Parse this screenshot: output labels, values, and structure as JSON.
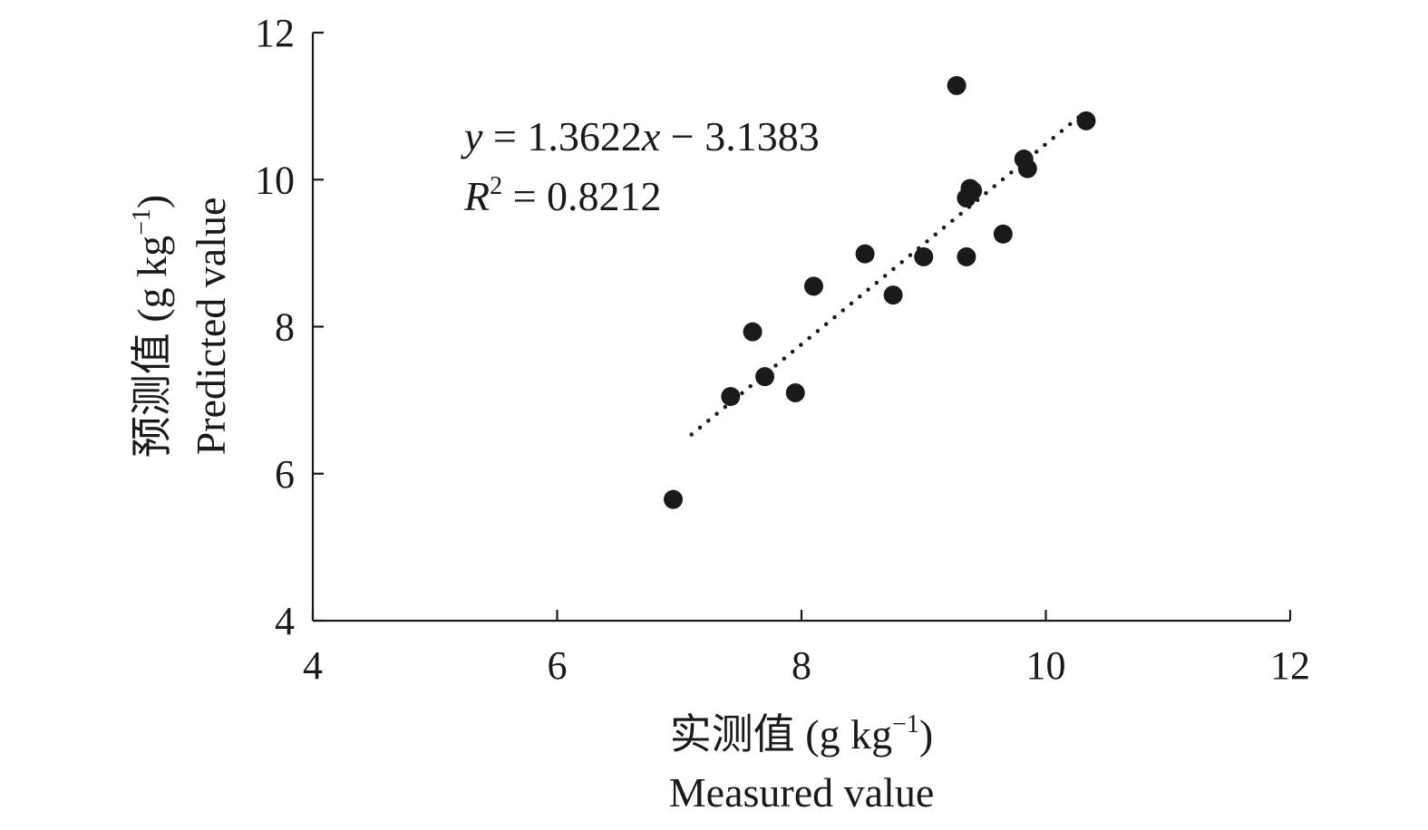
{
  "chart_data": {
    "type": "scatter",
    "title": "",
    "xlabel": {
      "cn": "实测值",
      "unit_base": " (g kg",
      "unit_sup": "−1",
      "unit_close": ")",
      "en": "Measured value"
    },
    "ylabel": {
      "cn": "预测值",
      "unit_base": " (g kg",
      "unit_sup": "−1",
      "unit_close": ")",
      "en": "Predicted value"
    },
    "xlim": [
      4,
      12
    ],
    "ylim": [
      4,
      12
    ],
    "xticks": [
      "4",
      "6",
      "8",
      "10",
      "12"
    ],
    "yticks": [
      "4",
      "6",
      "8",
      "10",
      "12"
    ],
    "grid": false,
    "legend": "none",
    "series": [
      {
        "points": [
          [
            6.95,
            5.65
          ],
          [
            7.42,
            7.05
          ],
          [
            7.6,
            7.93
          ],
          [
            7.7,
            7.32
          ],
          [
            7.95,
            7.1
          ],
          [
            8.1,
            8.55
          ],
          [
            8.52,
            8.99
          ],
          [
            8.75,
            8.43
          ],
          [
            9.0,
            8.95
          ],
          [
            9.27,
            11.28
          ],
          [
            9.35,
            8.95
          ],
          [
            9.35,
            9.75
          ],
          [
            9.4,
            9.85
          ],
          [
            9.38,
            9.88
          ],
          [
            9.65,
            9.26
          ],
          [
            9.82,
            10.28
          ],
          [
            9.85,
            10.15
          ],
          [
            10.33,
            10.8
          ]
        ]
      }
    ],
    "trendline": {
      "style": "dotted",
      "slope": 1.3622,
      "intercept": -3.1383,
      "x_range": [
        7.1,
        10.3
      ]
    },
    "annotation": {
      "eq_y": "y",
      "eq_mid": " = 1.3622",
      "eq_x": "x",
      "eq_end": " − 3.1383",
      "r2_r": "R",
      "r2_sup": "2",
      "r2_end": " = 0.8212"
    },
    "colors": {
      "marker": "#1a1a1a",
      "axis": "#1a1a1a",
      "trendline": "#1a1a1a"
    }
  }
}
